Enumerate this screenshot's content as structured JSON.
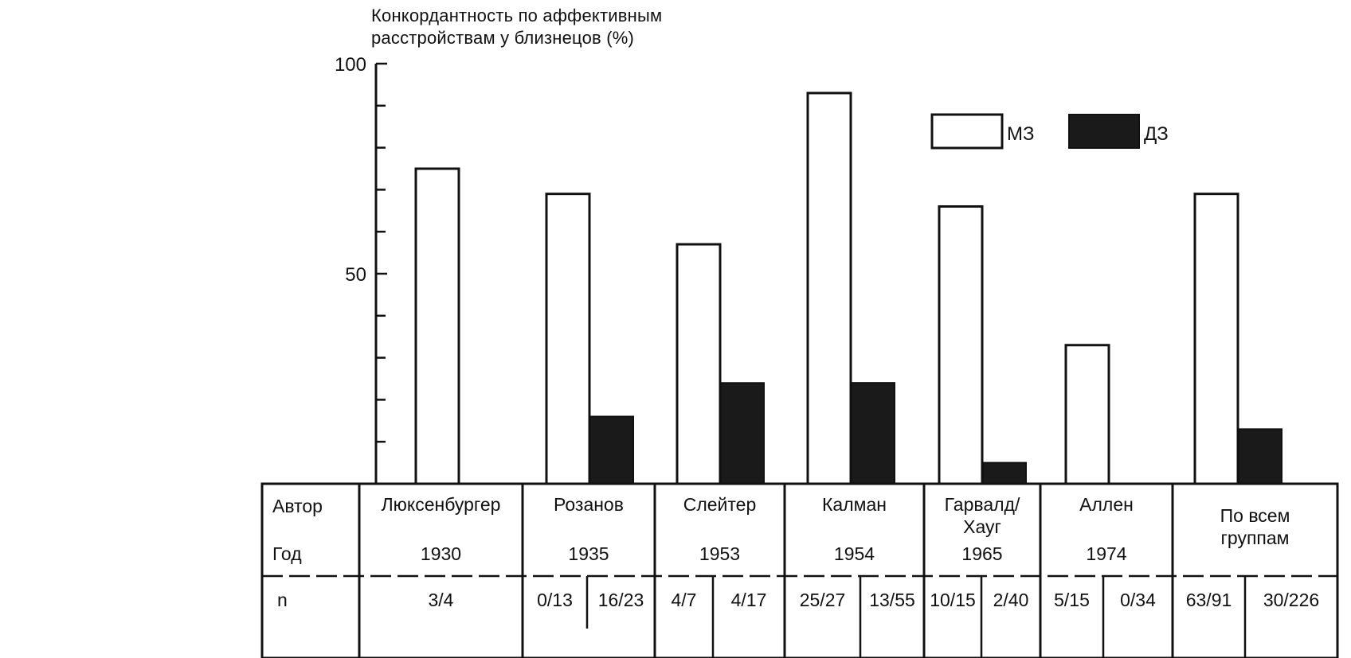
{
  "chart_data": {
    "type": "bar",
    "title_lines": [
      "Конкордантность по аффективным",
      "расстройствам у близнецов  (%)"
    ],
    "ylim": [
      0,
      100
    ],
    "yticks": [
      100,
      50
    ],
    "grid": false,
    "legend_position": "top-right",
    "legend": [
      {
        "name": "МЗ",
        "color": "#ffffff"
      },
      {
        "name": "ДЗ",
        "color": "#1a1a1a"
      }
    ],
    "series": [
      {
        "name": "МЗ",
        "values": [
          75,
          69,
          57,
          93,
          66,
          33,
          69
        ]
      },
      {
        "name": "ДЗ",
        "values": [
          null,
          16,
          24,
          null,
          5,
          null,
          13
        ]
      }
    ],
    "second_values_extra": {
      "Калман": 24
    },
    "groups": [
      {
        "author": "Люксенбургер",
        "year": "1930",
        "n": [
          "3/4"
        ],
        "mz": 75,
        "dz": null
      },
      {
        "author": "Розанов",
        "year": "1935",
        "n": [
          "0/13",
          "16/23"
        ],
        "mz": 69,
        "dz": 16
      },
      {
        "author": "Слейтер",
        "year": "1953",
        "n": [
          "4/7",
          "4/17"
        ],
        "mz": 57,
        "dz": 24
      },
      {
        "author": "Калман",
        "year": "1954",
        "n": [
          "25/27",
          "13/55"
        ],
        "mz": 93,
        "dz": 24
      },
      {
        "author": "Гарвалд/\nХауг",
        "year": "1965",
        "n": [
          "10/15",
          "2/40"
        ],
        "mz": 66,
        "dz": 5
      },
      {
        "author": "Аллен",
        "year": "1974",
        "n": [
          "5/15",
          "0/34"
        ],
        "mz": 33,
        "dz": null
      },
      {
        "author": "По всем\nгруппам",
        "year": "",
        "n": [
          "63/91",
          "30/226"
        ],
        "mz": 69,
        "dz": 13
      }
    ],
    "row_labels": {
      "author": "Автор",
      "year": "Год",
      "n": "n"
    }
  }
}
